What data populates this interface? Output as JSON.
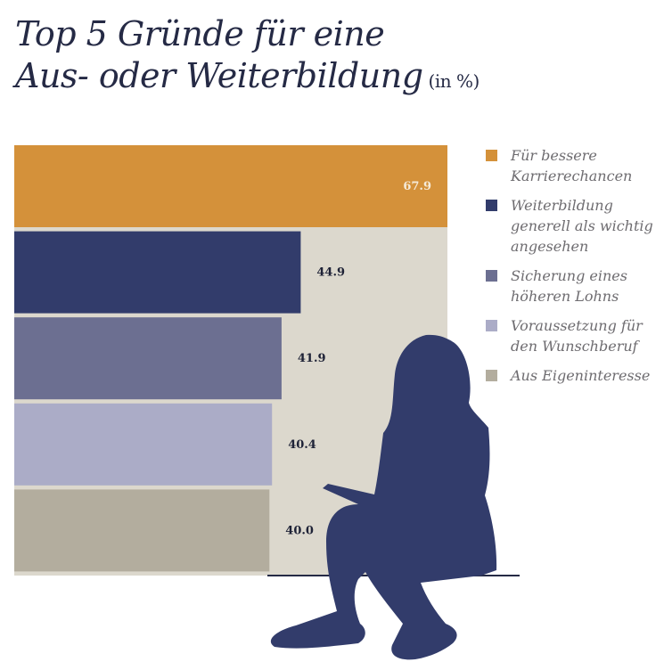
{
  "title": {
    "line1": "Top 5 Gründe für eine",
    "line2": "Aus- oder Weiterbildung",
    "unit": "(in %)"
  },
  "colors": {
    "background_panel": "#dcd8cd",
    "silhouette": "#323c6b",
    "baseline": "#252a45",
    "label_light": "#f5ead8",
    "label_dark": "#1e2236"
  },
  "chart_data": {
    "type": "bar",
    "orientation": "horizontal",
    "title": "Top 5 Gründe für eine Aus- oder Weiterbildung (in %)",
    "categories": [
      "Für bessere Karrierechancen",
      "Weiterbildung generell als wichtig angesehen",
      "Sicherung eines höheren Lohns",
      "Voraussetzung für den Wunschberuf",
      "Aus Eigeninteresse"
    ],
    "values": [
      67.9,
      44.9,
      41.9,
      40.4,
      40.0
    ],
    "value_labels": [
      "67.9",
      "44.9",
      "41.9",
      "40.4",
      "40.0"
    ],
    "colors": [
      "#d4913a",
      "#323c6b",
      "#6c6f91",
      "#abacc7",
      "#b3ad9e"
    ],
    "legend_position": "right",
    "grid": false,
    "xlim": [
      0,
      67.9
    ]
  },
  "legend": [
    {
      "lines": [
        "Für bessere",
        "Karrierechancen"
      ],
      "color": "#d4913a"
    },
    {
      "lines": [
        "Weiterbildung",
        "generell als wichtig",
        "angesehen"
      ],
      "color": "#323c6b"
    },
    {
      "lines": [
        "Sicherung eines",
        "höheren Lohns"
      ],
      "color": "#6c6f91"
    },
    {
      "lines": [
        "Voraussetzung für",
        "den Wunschberuf"
      ],
      "color": "#abacc7"
    },
    {
      "lines": [
        "Aus Eigeninteresse"
      ],
      "color": "#b3ad9e"
    }
  ],
  "illustration": {
    "name": "sitting-woman-silhouette"
  }
}
